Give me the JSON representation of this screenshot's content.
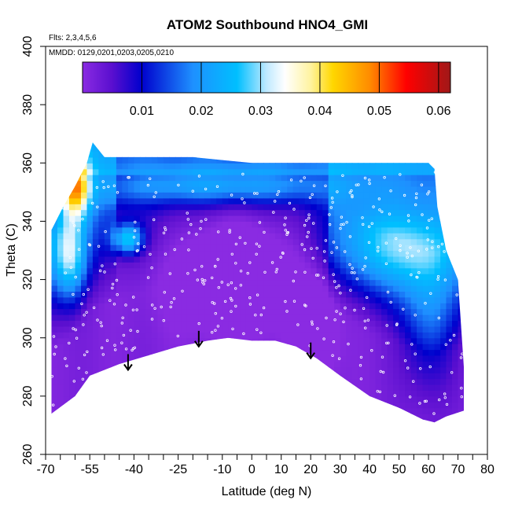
{
  "chart_data": {
    "type": "heatmap",
    "title": "ATOM2 Southbound HNO4_GMI",
    "annotations": [
      "Flts: 2,3,4,5,6",
      "MMDD: 0129,0201,0203,0205,0210"
    ],
    "xlabel": "Latitude (deg N)",
    "ylabel": "Theta (C)",
    "xlim": [
      -70,
      80
    ],
    "ylim": [
      260,
      400
    ],
    "x_ticks": [
      -70,
      -55,
      -40,
      -25,
      -10,
      0,
      10,
      20,
      30,
      40,
      50,
      60,
      70,
      80
    ],
    "y_ticks": [
      260,
      280,
      300,
      320,
      340,
      360,
      380,
      400
    ],
    "colorbar": {
      "range": [
        0,
        0.062
      ],
      "ticks": [
        0.01,
        0.02,
        0.03,
        0.04,
        0.05,
        0.06
      ],
      "tick_labels": [
        "0.01",
        "0.02",
        "0.03",
        "0.04",
        "0.05",
        "0.06"
      ],
      "colors": [
        "#8a2be2",
        "#0000cd",
        "#1e90ff",
        "#00bfff",
        "#ffffff",
        "#ffd700",
        "#ff8c00",
        "#ff0000",
        "#b22222"
      ]
    },
    "floor_boundary": [
      [
        -68,
        274
      ],
      [
        -60,
        280
      ],
      [
        -55,
        287
      ],
      [
        -45,
        291
      ],
      [
        -35,
        294
      ],
      [
        -25,
        297
      ],
      [
        -15,
        299
      ],
      [
        -8,
        300
      ],
      [
        0,
        299
      ],
      [
        8,
        299
      ],
      [
        15,
        297
      ],
      [
        22,
        293
      ],
      [
        30,
        287
      ],
      [
        40,
        280
      ],
      [
        50,
        276
      ],
      [
        58,
        272
      ],
      [
        62,
        271
      ],
      [
        66,
        273
      ],
      [
        72,
        275
      ]
    ],
    "top_boundary": [
      [
        -68,
        337
      ],
      [
        -64,
        345
      ],
      [
        -60,
        352
      ],
      [
        -56,
        360
      ],
      [
        -54,
        367
      ],
      [
        -50,
        362
      ],
      [
        -40,
        362
      ],
      [
        -30,
        362
      ],
      [
        -20,
        362
      ],
      [
        -10,
        361
      ],
      [
        0,
        360
      ],
      [
        10,
        360
      ],
      [
        20,
        360
      ],
      [
        30,
        360
      ],
      [
        40,
        360
      ],
      [
        50,
        360
      ],
      [
        60,
        360
      ],
      [
        62,
        358
      ],
      [
        63,
        345
      ],
      [
        66,
        330
      ],
      [
        70,
        320
      ],
      [
        72,
        290
      ],
      [
        72,
        275
      ]
    ],
    "features": [
      {
        "region": "south upper left (-68 to -55, 325-367)",
        "level": 0.033
      },
      {
        "region": "local max near -42 lat, 335 K",
        "level": 0.04
      },
      {
        "region": "upper band 340-360 K",
        "level": 0.018
      },
      {
        "region": "lower troposphere core",
        "level": 0.002
      },
      {
        "region": "north mid levels (25 to 70, 315-350)",
        "level": 0.022
      }
    ],
    "arrows": [
      {
        "lat": -42,
        "theta": 289
      },
      {
        "lat": -18,
        "theta": 297
      },
      {
        "lat": 20,
        "theta": 293
      }
    ]
  }
}
